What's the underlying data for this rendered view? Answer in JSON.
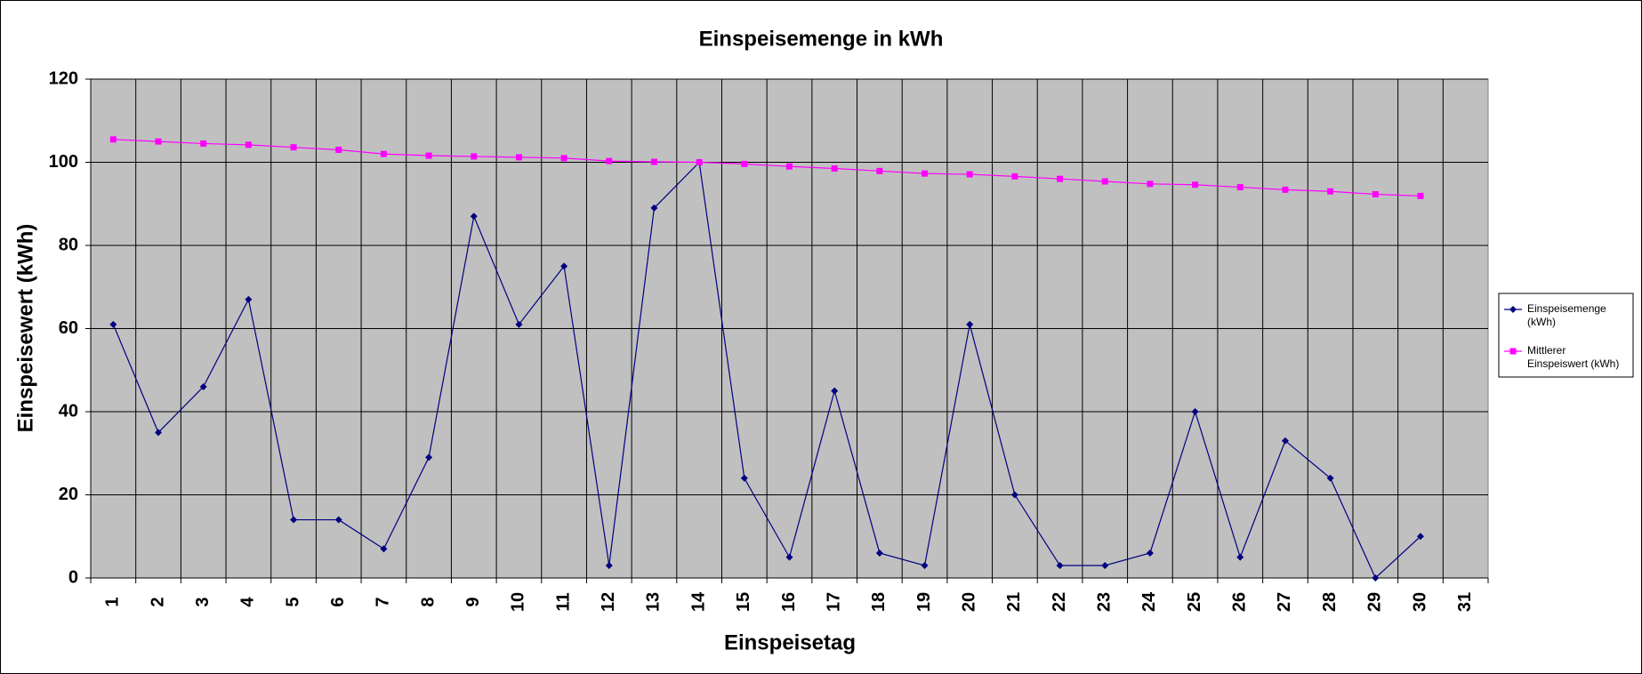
{
  "chart_data": {
    "type": "line",
    "title": "Einspeisemenge in kWh",
    "x_label": "Einspeisetag",
    "y_label": "Einspeisewert  (kWh)",
    "categories": [
      "1",
      "2",
      "3",
      "4",
      "5",
      "6",
      "7",
      "8",
      "9",
      "10",
      "11",
      "12",
      "13",
      "14",
      "15",
      "16",
      "17",
      "18",
      "19",
      "20",
      "21",
      "22",
      "23",
      "24",
      "25",
      "26",
      "27",
      "28",
      "29",
      "30",
      "31"
    ],
    "series": [
      {
        "name": "Einspeisemenge (kWh)",
        "color": "#000080",
        "marker": "diamond",
        "values": [
          61,
          35,
          46,
          67,
          14,
          14,
          7,
          29,
          87,
          61,
          75,
          3,
          89,
          100,
          24,
          5,
          45,
          6,
          3,
          61,
          20,
          3,
          3,
          6,
          40,
          5,
          33,
          24,
          0,
          10,
          null
        ]
      },
      {
        "name": "Mittlerer Einspeiswert (kWh)",
        "color": "#ff00ff",
        "marker": "square",
        "values": [
          105.5,
          105,
          104.5,
          104.2,
          103.6,
          103,
          102,
          101.6,
          101.4,
          101.2,
          101,
          100.3,
          100.1,
          100,
          99.6,
          99,
          98.5,
          97.9,
          97.3,
          97.1,
          96.6,
          96,
          95.4,
          94.8,
          94.6,
          94,
          93.4,
          93,
          92.3,
          91.9,
          null
        ]
      }
    ],
    "ylim": [
      0,
      120
    ],
    "yticks": [
      0,
      20,
      40,
      60,
      80,
      100,
      120
    ],
    "grid": true,
    "legend": "right",
    "plot_background": "#c0c0c0"
  }
}
